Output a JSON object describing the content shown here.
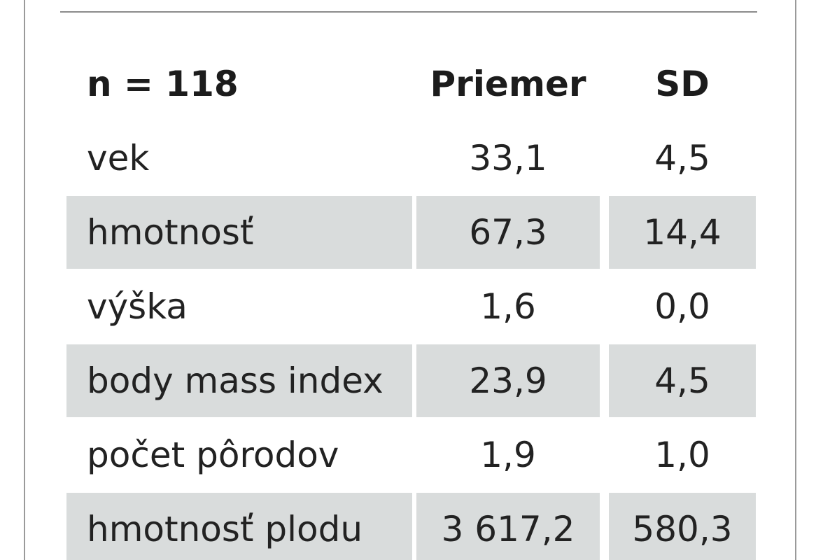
{
  "table": {
    "header": {
      "label": "n = 118",
      "mean": "Priemer",
      "sd": "SD"
    },
    "rows": [
      {
        "label": "vek",
        "mean": "33,1",
        "sd": "4,5"
      },
      {
        "label": "hmotnosť",
        "mean": "67,3",
        "sd": "14,4"
      },
      {
        "label": "výška",
        "mean": "1,6",
        "sd": "0,0"
      },
      {
        "label": "body mass index",
        "mean": "23,9",
        "sd": "4,5"
      },
      {
        "label": "počet pôrodov",
        "mean": "1,9",
        "sd": "1,0"
      },
      {
        "label": "hmotnosť plodu",
        "mean": "3 617,2",
        "sd": "580,3"
      }
    ]
  }
}
